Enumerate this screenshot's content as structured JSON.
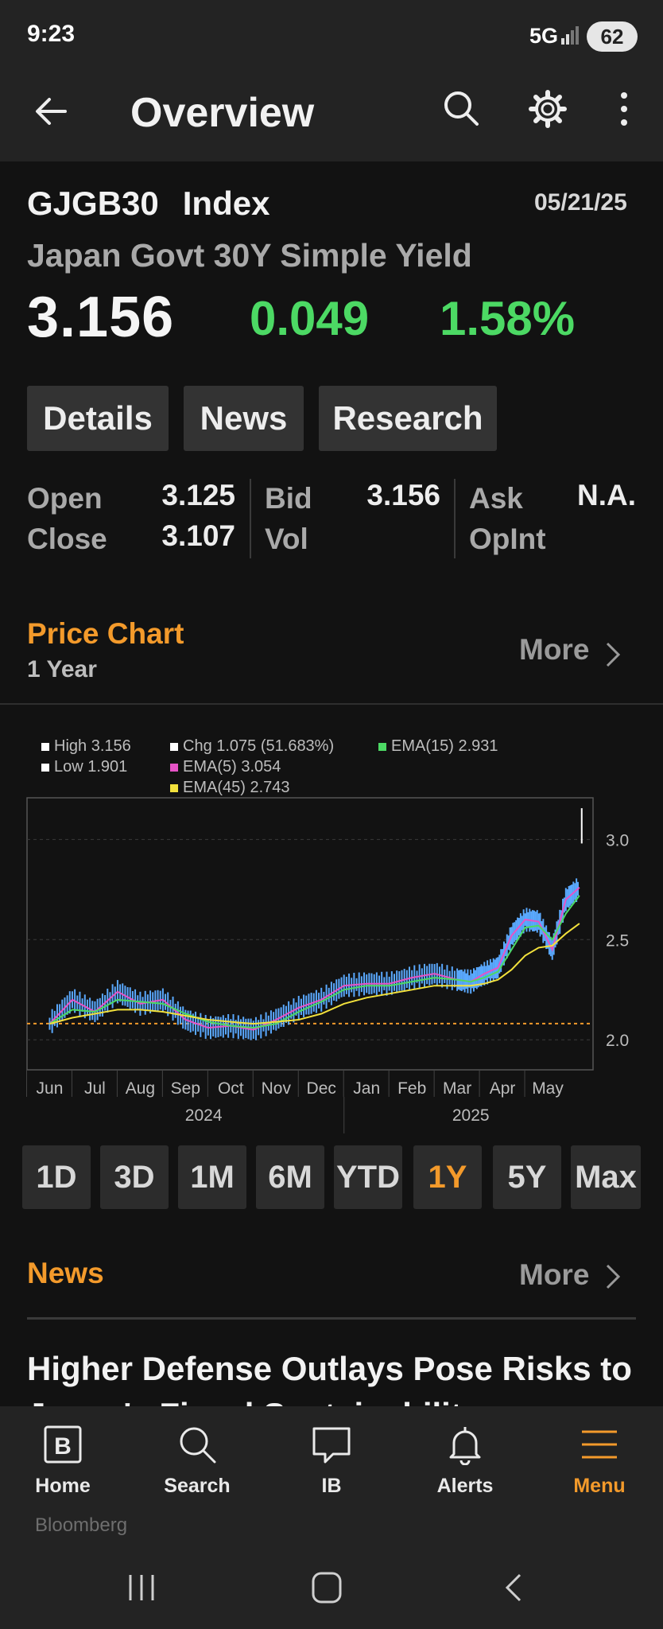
{
  "status_bar": {
    "time": "9:23",
    "network": "5G",
    "battery": "62"
  },
  "header": {
    "title": "Overview"
  },
  "security": {
    "ticker": "GJGB30",
    "type": "Index",
    "date": "05/21/25",
    "name": "Japan Govt 30Y Simple Yield",
    "price": "3.156",
    "change": "0.049",
    "change_pct": "1.58%"
  },
  "tabs": [
    "Details",
    "News",
    "Research"
  ],
  "quote": {
    "open_label": "Open",
    "open": "3.125",
    "close_label": "Close",
    "close": "3.107",
    "bid_label": "Bid",
    "bid": "3.156",
    "vol_label": "Vol",
    "ask_label": "Ask",
    "ask": "N.A.",
    "opint_label": "OpInt"
  },
  "price_chart": {
    "title": "Price Chart",
    "period": "1 Year",
    "more": "More",
    "legend": {
      "high": "High 3.156",
      "low": "Low 1.901",
      "chg": "Chg 1.075 (51.683%)",
      "ema5": "EMA(5) 3.054",
      "ema15": "EMA(15) 2.931",
      "ema45": "EMA(45) 2.743"
    },
    "colors": {
      "ema5": "#e653c6",
      "ema15": "#4cd964",
      "ema45": "#f2e13c",
      "candle": "#5aa9ff",
      "ref": "#f39a2b"
    }
  },
  "chart_data": {
    "type": "line",
    "x_labels": [
      "Jun",
      "Jul",
      "Aug",
      "Sep",
      "Oct",
      "Nov",
      "Dec",
      "Jan",
      "Feb",
      "Mar",
      "Apr",
      "May"
    ],
    "years": [
      "2024",
      "2025"
    ],
    "ylim": [
      1.85,
      3.2
    ],
    "yticks": [
      "3.0",
      "2.5",
      "2.0"
    ],
    "reference_line": 2.081,
    "series": [
      {
        "name": "EMA(5)",
        "x": [
          0,
          0.5,
          1,
          1.5,
          2,
          2.5,
          3,
          3.5,
          4,
          4.5,
          5,
          5.5,
          6,
          6.5,
          7,
          7.5,
          8,
          8.5,
          9,
          9.3,
          9.6,
          9.9,
          10.2,
          10.5,
          10.8,
          11.1,
          11.4,
          11.7
        ],
        "values": [
          2.08,
          2.2,
          2.14,
          2.24,
          2.18,
          2.2,
          2.1,
          2.06,
          2.07,
          2.05,
          2.1,
          2.16,
          2.2,
          2.27,
          2.28,
          2.28,
          2.31,
          2.33,
          2.3,
          2.29,
          2.33,
          2.36,
          2.52,
          2.6,
          2.59,
          2.45,
          2.7,
          2.76
        ]
      },
      {
        "name": "EMA(15)",
        "x": [
          0,
          0.5,
          1,
          1.5,
          2,
          2.5,
          3,
          3.5,
          4,
          4.5,
          5,
          5.5,
          6,
          6.5,
          7,
          7.5,
          8,
          8.5,
          9,
          9.3,
          9.6,
          9.9,
          10.2,
          10.5,
          10.8,
          11.1,
          11.4,
          11.7
        ],
        "values": [
          2.08,
          2.15,
          2.14,
          2.2,
          2.19,
          2.18,
          2.13,
          2.09,
          2.07,
          2.06,
          2.08,
          2.14,
          2.19,
          2.25,
          2.27,
          2.27,
          2.29,
          2.31,
          2.3,
          2.29,
          2.31,
          2.34,
          2.45,
          2.56,
          2.57,
          2.5,
          2.63,
          2.72
        ]
      },
      {
        "name": "EMA(45)",
        "x": [
          0,
          0.5,
          1,
          1.5,
          2,
          2.5,
          3,
          3.5,
          4,
          4.5,
          5,
          5.5,
          6,
          6.5,
          7,
          7.5,
          8,
          8.5,
          9,
          9.3,
          9.6,
          9.9,
          10.2,
          10.5,
          10.8,
          11.1,
          11.4,
          11.7
        ],
        "values": [
          2.08,
          2.11,
          2.13,
          2.15,
          2.15,
          2.14,
          2.12,
          2.1,
          2.09,
          2.08,
          2.09,
          2.1,
          2.13,
          2.18,
          2.21,
          2.23,
          2.25,
          2.27,
          2.27,
          2.27,
          2.28,
          2.3,
          2.35,
          2.42,
          2.46,
          2.47,
          2.53,
          2.58
        ]
      }
    ]
  },
  "range_buttons": [
    {
      "label": "1D",
      "active": false
    },
    {
      "label": "3D",
      "active": false
    },
    {
      "label": "1M",
      "active": false
    },
    {
      "label": "6M",
      "active": false
    },
    {
      "label": "YTD",
      "active": false
    },
    {
      "label": "1Y",
      "active": true
    },
    {
      "label": "5Y",
      "active": false
    },
    {
      "label": "Max",
      "active": false
    }
  ],
  "news": {
    "title": "News",
    "more": "More",
    "headline": "Higher Defense Outlays Pose Risks to Japan's Fiscal Sustainability"
  },
  "bottom_nav": [
    {
      "label": "Home",
      "icon": "bloomberg-b-icon"
    },
    {
      "label": "Search",
      "icon": "search-icon"
    },
    {
      "label": "IB",
      "icon": "chat-icon"
    },
    {
      "label": "Alerts",
      "icon": "bell-icon"
    },
    {
      "label": "Menu",
      "icon": "menu-icon"
    }
  ],
  "brand": "Bloomberg"
}
